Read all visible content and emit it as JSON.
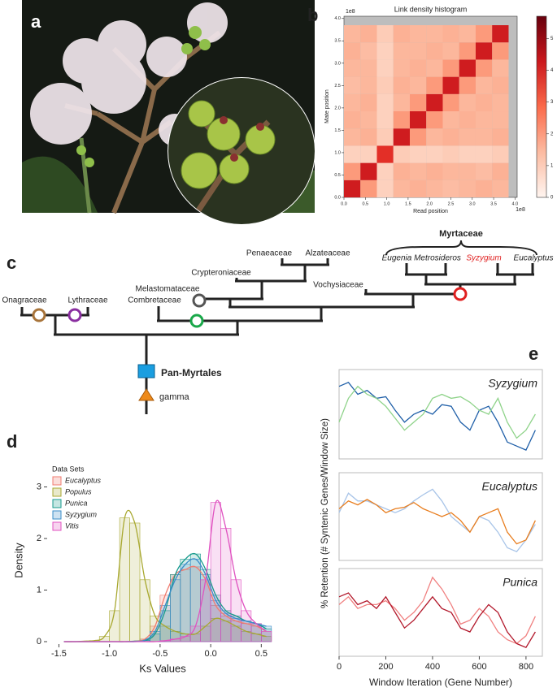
{
  "panel_labels": [
    "a",
    "b",
    "c",
    "d",
    "e"
  ],
  "tree": {
    "clade_label": "Myrtaceae",
    "taxa": [
      "Penaeaceae",
      "Alzateaceae",
      "Eugenia",
      "Metrosideros",
      "Syzygium",
      "Eucalyptus",
      "Crypteroniaceae",
      "Melastomataceae",
      "Vochysiaceae",
      "Onagraceae",
      "Lythraceae",
      "Combretaceae"
    ],
    "root_label": "Pan-Myrtales",
    "event_label": "gamma"
  },
  "chart_data": [
    {
      "type": "heatmap",
      "title": "Link density histogram",
      "x_label": "Read position",
      "y_label": "Mate position",
      "x_offset_label": "1e8",
      "y_offset_label": "1e8",
      "x_edges": [
        0,
        38500000,
        77000000,
        115500000,
        154000000,
        192500000,
        231000000,
        269500000,
        308000000,
        346500000,
        385000000
      ],
      "y_edges": [
        0,
        38500000,
        77000000,
        115500000,
        154000000,
        192500000,
        231000000,
        269500000,
        308000000,
        346500000,
        385000000
      ],
      "z": [
        [
          4.2,
          2.0,
          1.0,
          1.5,
          1.6,
          1.5,
          1.4,
          1.5,
          1.6,
          1.5
        ],
        [
          2.0,
          4.2,
          1.0,
          1.6,
          1.5,
          1.6,
          1.5,
          1.5,
          1.4,
          1.6
        ],
        [
          1.0,
          1.0,
          3.8,
          1.1,
          1.0,
          1.0,
          1.1,
          1.0,
          1.0,
          1.1
        ],
        [
          1.5,
          1.6,
          1.1,
          4.2,
          2.0,
          1.5,
          1.6,
          1.5,
          1.5,
          1.6
        ],
        [
          1.6,
          1.5,
          1.0,
          2.0,
          4.2,
          2.0,
          1.5,
          1.6,
          1.5,
          1.5
        ],
        [
          1.5,
          1.6,
          1.0,
          1.5,
          2.0,
          4.2,
          2.0,
          1.5,
          1.6,
          1.5
        ],
        [
          1.4,
          1.5,
          1.1,
          1.6,
          1.5,
          2.0,
          4.2,
          2.0,
          1.5,
          1.6
        ],
        [
          1.5,
          1.5,
          1.0,
          1.5,
          1.6,
          1.5,
          2.0,
          4.2,
          2.0,
          1.5
        ],
        [
          1.6,
          1.4,
          1.0,
          1.5,
          1.5,
          1.6,
          1.5,
          2.0,
          4.2,
          2.0
        ],
        [
          1.5,
          1.6,
          1.1,
          1.6,
          1.5,
          1.5,
          1.6,
          1.5,
          2.0,
          4.2
        ]
      ],
      "colormap": "Reds",
      "clim": [
        0,
        5.7
      ],
      "cticks": [
        0,
        1,
        2,
        3,
        4,
        5
      ],
      "xlim": [
        0,
        405000000
      ],
      "ylim": [
        0,
        405000000
      ],
      "xticks": [
        {
          "value": 0,
          "label": "0.0"
        },
        {
          "value": 50000000,
          "label": "0.5"
        },
        {
          "value": 100000000,
          "label": "1.0"
        },
        {
          "value": 150000000,
          "label": "1.5"
        },
        {
          "value": 200000000,
          "label": "2.0"
        },
        {
          "value": 250000000,
          "label": "2.5"
        },
        {
          "value": 300000000,
          "label": "3.0"
        },
        {
          "value": 350000000,
          "label": "3.5"
        },
        {
          "value": 400000000,
          "label": "4.0"
        }
      ],
      "yticks": [
        {
          "value": 0,
          "label": "0.0"
        },
        {
          "value": 50000000,
          "label": "0.5"
        },
        {
          "value": 100000000,
          "label": "1.0"
        },
        {
          "value": 150000000,
          "label": "1.5"
        },
        {
          "value": 200000000,
          "label": "2.0"
        },
        {
          "value": 250000000,
          "label": "2.5"
        },
        {
          "value": 300000000,
          "label": "3.0"
        },
        {
          "value": 350000000,
          "label": "3.5"
        },
        {
          "value": 400000000,
          "label": "4.0"
        }
      ]
    },
    {
      "type": "histogram",
      "x_label": "Ks Values",
      "y_label": "Density",
      "legend_title": "Data Sets",
      "legend": "top-left",
      "bins": [
        -1.5,
        -1.4,
        -1.3,
        -1.2,
        -1.1,
        -1.0,
        -0.9,
        -0.8,
        -0.7,
        -0.6,
        -0.5,
        -0.4,
        -0.3,
        -0.2,
        -0.1,
        0.0,
        0.1,
        0.2,
        0.3,
        0.4,
        0.5,
        0.6
      ],
      "series": [
        {
          "name": "Eucalyptus",
          "color": "#f07c70",
          "values": [
            0,
            0,
            0,
            0,
            0,
            0,
            0,
            0.01,
            0.05,
            0.3,
            0.9,
            1.3,
            1.4,
            1.45,
            1.2,
            0.7,
            0.5,
            0.4,
            0.35,
            0.3,
            0.2
          ]
        },
        {
          "name": "Populus",
          "color": "#a8a830",
          "values": [
            0,
            0,
            0.01,
            0.02,
            0.1,
            0.6,
            2.4,
            2.3,
            1.2,
            0.5,
            0.3,
            0.2,
            0.15,
            0.15,
            0.3,
            0.45,
            0.4,
            0.3,
            0.2,
            0.15,
            0.1
          ]
        },
        {
          "name": "Punica",
          "color": "#169a8c",
          "values": [
            0,
            0,
            0,
            0,
            0,
            0,
            0,
            0.01,
            0.02,
            0.15,
            0.6,
            1.3,
            1.6,
            1.7,
            1.4,
            0.9,
            0.6,
            0.5,
            0.4,
            0.35,
            0.25
          ]
        },
        {
          "name": "Syzygium",
          "color": "#3a8cc8",
          "values": [
            0,
            0,
            0,
            0,
            0,
            0,
            0,
            0,
            0.03,
            0.2,
            0.7,
            1.2,
            1.5,
            1.6,
            1.3,
            0.8,
            0.55,
            0.45,
            0.4,
            0.35,
            0.3
          ]
        },
        {
          "name": "Vitis",
          "color": "#e052c0",
          "values": [
            0,
            0,
            0,
            0,
            0,
            0,
            0,
            0,
            0,
            0,
            0.02,
            0.05,
            0.1,
            0.3,
            1.2,
            2.7,
            2.2,
            1.2,
            0.6,
            0.35,
            0.2
          ]
        }
      ],
      "xlim": [
        -1.6,
        0.65
      ],
      "ylim": [
        0,
        3.15
      ],
      "xticks": [
        -1.5,
        {
          "value": -1,
          "label": "-1.0"
        },
        -0.5,
        {
          "value": 0,
          "label": "0.0"
        },
        0.5
      ],
      "yticks": [
        0,
        1,
        2,
        3
      ]
    },
    {
      "type": "line",
      "title": "Syzygium",
      "x": [
        0,
        40,
        80,
        120,
        160,
        200,
        240,
        280,
        320,
        360,
        400,
        440,
        480,
        520,
        560,
        600,
        640,
        680,
        720,
        760,
        800,
        840
      ],
      "xlim": [
        0,
        870
      ],
      "ylim": [
        0,
        1
      ],
      "series": [
        {
          "color": "#1f5fa8",
          "values": [
            0.85,
            0.9,
            0.75,
            0.8,
            0.7,
            0.72,
            0.55,
            0.4,
            0.5,
            0.55,
            0.5,
            0.62,
            0.6,
            0.4,
            0.3,
            0.55,
            0.6,
            0.4,
            0.15,
            0.1,
            0.05,
            0.3
          ]
        },
        {
          "color": "#8fd38a",
          "values": [
            0.4,
            0.7,
            0.85,
            0.75,
            0.7,
            0.6,
            0.45,
            0.3,
            0.4,
            0.5,
            0.7,
            0.75,
            0.7,
            0.72,
            0.65,
            0.55,
            0.5,
            0.7,
            0.4,
            0.2,
            0.3,
            0.5
          ]
        }
      ]
    },
    {
      "type": "line",
      "title": "Eucalyptus",
      "y_label": "% Retention (# Syntenic Genes/Window Size)",
      "x": [
        0,
        40,
        80,
        120,
        160,
        200,
        240,
        280,
        320,
        360,
        400,
        440,
        480,
        520,
        560,
        600,
        640,
        680,
        720,
        760,
        800,
        840
      ],
      "xlim": [
        0,
        870
      ],
      "ylim": [
        0,
        1
      ],
      "series": [
        {
          "color": "#a8c4e8",
          "values": [
            0.55,
            0.8,
            0.7,
            0.7,
            0.65,
            0.6,
            0.55,
            0.6,
            0.7,
            0.78,
            0.85,
            0.7,
            0.5,
            0.4,
            0.3,
            0.5,
            0.45,
            0.3,
            0.1,
            0.05,
            0.2,
            0.4
          ]
        },
        {
          "color": "#e87d1e",
          "values": [
            0.6,
            0.7,
            0.65,
            0.72,
            0.65,
            0.55,
            0.6,
            0.62,
            0.68,
            0.6,
            0.55,
            0.5,
            0.55,
            0.45,
            0.3,
            0.5,
            0.55,
            0.6,
            0.3,
            0.15,
            0.2,
            0.45
          ]
        }
      ]
    },
    {
      "type": "line",
      "title": "Punica",
      "x_label": "Window Iteration (Gene Number)",
      "x": [
        0,
        40,
        80,
        120,
        160,
        200,
        240,
        280,
        320,
        360,
        400,
        440,
        480,
        520,
        560,
        600,
        640,
        680,
        720,
        760,
        800,
        840
      ],
      "xlim": [
        0,
        870
      ],
      "ylim": [
        0,
        1
      ],
      "xticks": [
        0,
        200,
        400,
        600,
        800
      ],
      "series": [
        {
          "color": "#f08080",
          "values": [
            0.6,
            0.7,
            0.55,
            0.6,
            0.6,
            0.65,
            0.55,
            0.4,
            0.5,
            0.65,
            0.95,
            0.8,
            0.6,
            0.35,
            0.4,
            0.55,
            0.45,
            0.25,
            0.15,
            0.1,
            0.2,
            0.45
          ]
        },
        {
          "color": "#b2182b",
          "values": [
            0.7,
            0.75,
            0.6,
            0.65,
            0.55,
            0.7,
            0.5,
            0.3,
            0.4,
            0.55,
            0.7,
            0.55,
            0.5,
            0.3,
            0.25,
            0.45,
            0.6,
            0.5,
            0.25,
            0.1,
            0.05,
            0.25
          ]
        }
      ]
    }
  ]
}
